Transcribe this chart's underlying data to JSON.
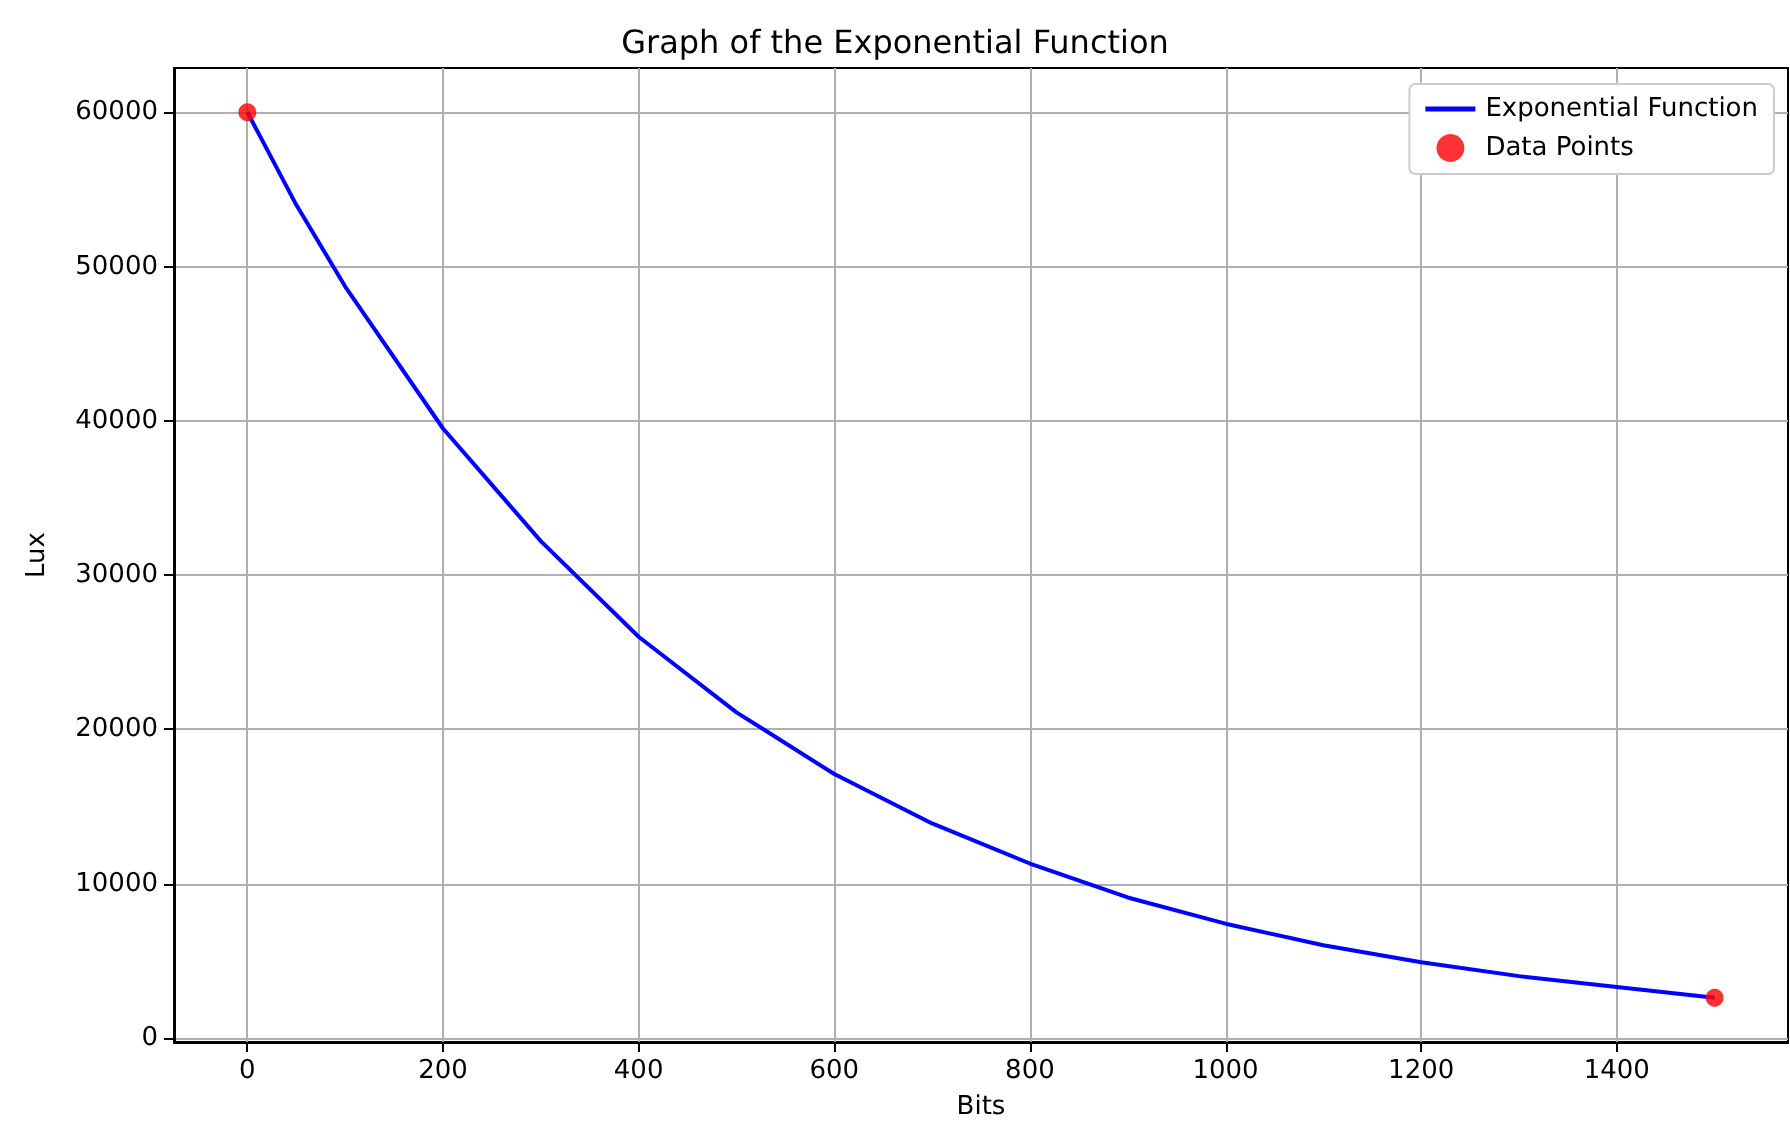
{
  "chart_data": {
    "type": "line",
    "title": "Graph of the Exponential Function",
    "xlabel": "Bits",
    "ylabel": "Lux",
    "xlim": [
      -75,
      1575
    ],
    "xticks": [
      0,
      200,
      400,
      600,
      800,
      1000,
      1200,
      1400
    ],
    "ylim": [
      -270,
      62870
    ],
    "yticks": [
      0,
      10000,
      20000,
      30000,
      40000,
      50000,
      60000
    ],
    "grid": true,
    "legend": "top right",
    "series": [
      {
        "name": "Exponential Function",
        "color": "#0000ff",
        "x": [
          0,
          50,
          100,
          200,
          300,
          400,
          500,
          600,
          700,
          800,
          900,
          1000,
          1100,
          1200,
          1300,
          1400,
          1500
        ],
        "values": [
          60000,
          54000,
          48700,
          39500,
          32200,
          26000,
          21100,
          17100,
          13900,
          11300,
          9100,
          7400,
          6000,
          4900,
          4000,
          3300,
          2600
        ]
      },
      {
        "name": "Data Points",
        "type": "scatter",
        "color": "#ff0000",
        "x": [
          0,
          1500
        ],
        "values": [
          60000,
          2600
        ]
      }
    ]
  }
}
